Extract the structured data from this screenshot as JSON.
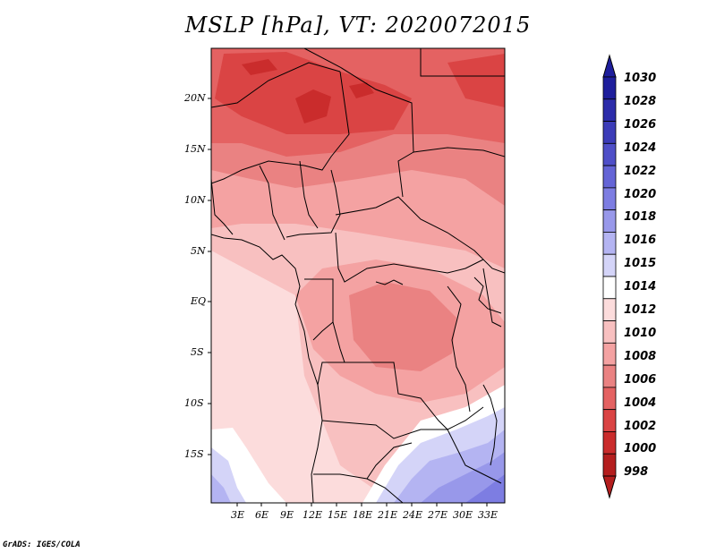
{
  "title": "MSLP [hPa], VT: 2020072015",
  "credit": "GrADS: IGES/COLA",
  "lat_labels": [
    "20N",
    "15N",
    "10N",
    "5N",
    "EQ",
    "5S",
    "10S",
    "15S"
  ],
  "lon_labels": [
    "3E",
    "6E",
    "9E",
    "12E",
    "15E",
    "18E",
    "21E",
    "24E",
    "27E",
    "30E",
    "33E"
  ],
  "colorbar": {
    "labels": [
      "1030",
      "1028",
      "1026",
      "1024",
      "1022",
      "1020",
      "1018",
      "1016",
      "1015",
      "1014",
      "1012",
      "1010",
      "1008",
      "1006",
      "1004",
      "1002",
      "1000",
      "998"
    ],
    "colors": [
      "#1e1e9c",
      "#2c2caa",
      "#3c3cb8",
      "#4f4fc8",
      "#6464d6",
      "#7d7de2",
      "#9898ea",
      "#b4b4f2",
      "#d4d4f8",
      "#ffffff",
      "#fcdcdc",
      "#f8c0c0",
      "#f4a2a2",
      "#ea8282",
      "#e46262",
      "#da4444",
      "#ca2c2c",
      "#b41e1e"
    ]
  }
}
